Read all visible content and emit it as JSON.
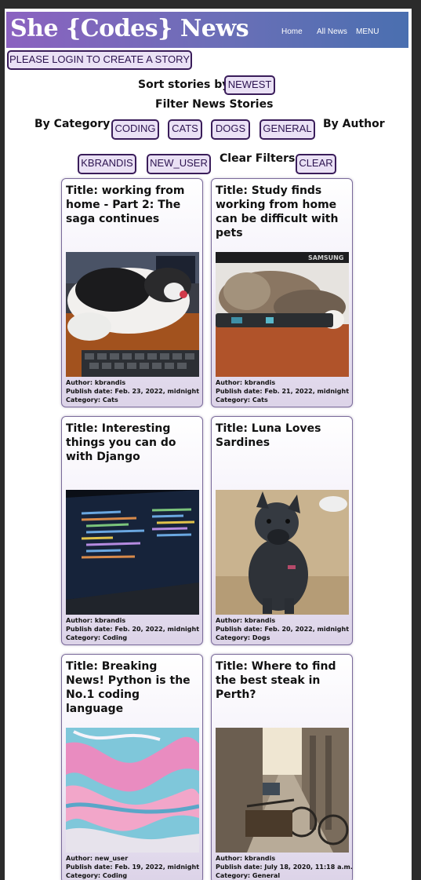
{
  "header": {
    "brand": "She {Codes} News",
    "nav": {
      "home": "Home",
      "all_news": "All News",
      "menu": "MENU"
    }
  },
  "login_button": "PLEASE LOGIN TO CREATE A STORY",
  "sort": {
    "label": "Sort stories by:",
    "newest": "NEWEST"
  },
  "filter": {
    "title": "Filter News Stories",
    "by_category": "By Category",
    "categories": [
      "CODING",
      "CATS",
      "DOGS",
      "GENERAL"
    ],
    "by_author": "By Author",
    "authors": [
      "KBRANDIS",
      "NEW_USER"
    ],
    "clear_label": "Clear Filters",
    "clear_button": "CLEAR"
  },
  "stories": [
    {
      "title": "Title: working from home - Part 2: The saga continues",
      "author": "Author: kbrandis",
      "date": "Publish date: Feb. 23, 2022, midnight",
      "category": "Category: Cats"
    },
    {
      "title": "Title: Study finds working from home can be difficult with pets",
      "author": "Author: kbrandis",
      "date": "Publish date: Feb. 21, 2022, midnight",
      "category": "Category: Cats",
      "photo_text": "SAMSUNG"
    },
    {
      "title": "Title: Interesting things you can do with Django",
      "author": "Author: kbrandis",
      "date": "Publish date: Feb. 20, 2022, midnight",
      "category": "Category: Coding"
    },
    {
      "title": "Title: Luna Loves Sardines",
      "author": "Author: kbrandis",
      "date": "Publish date: Feb. 20, 2022, midnight",
      "category": "Category: Dogs"
    },
    {
      "title": "Title: Breaking News! Python is the No.1 coding language",
      "author": "Author: new_user",
      "date": "Publish date: Feb. 19, 2022, midnight",
      "category": "Category: Coding"
    },
    {
      "title": "Title: Where to find the best steak in Perth?",
      "author": "Author: kbrandis",
      "date": "Publish date: July 18, 2020, 11:18 a.m.",
      "category": "Category: General"
    }
  ],
  "colors": {
    "banner_start": "#8b62c0",
    "banner_end": "#4a6fb0",
    "pill_bg": "#eae1f5",
    "pill_border": "#3a1d5a"
  }
}
